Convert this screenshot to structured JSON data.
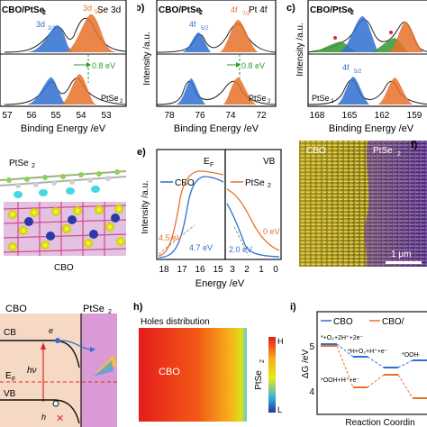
{
  "panels": {
    "a": {
      "label": "",
      "top_title": "CBO/PtSe",
      "top_title_sub": "2",
      "corner": "Se 3d",
      "peak1": "3d",
      "peak1_sub": "3/2",
      "peak2": "3d",
      "peak2_sub": "5/2",
      "shift": "0.8 eV",
      "bottom_label": "PtSe",
      "bottom_label_sub": "2",
      "xticks": [
        "57",
        "56",
        "55",
        "54",
        "53"
      ],
      "xlabel": "Binding Energy /eV"
    },
    "b": {
      "label": "b)",
      "top_title": "CBO/PtSe",
      "top_title_sub": "2",
      "corner": "Pt 4f",
      "peak1": "4f",
      "peak1_sub": "5/2",
      "peak2": "4f",
      "peak2_sub": "7/2",
      "shift": "0.8 eV",
      "bottom_label": "PtSe",
      "bottom_label_sub": "2",
      "ylabel": "Intensity /a.u.",
      "xticks": [
        "78",
        "76",
        "74",
        "72"
      ],
      "xlabel": "Binding Energy /eV"
    },
    "c": {
      "label": "c)",
      "top_title": "CBO/PtSe",
      "top_title_sub": "2",
      "peak1": "4f",
      "peak1_sub": "5/2",
      "bottom_label": "PtSe",
      "bottom_label_sub": "2",
      "ylabel": "Intensity /a.u.",
      "xticks": [
        "168",
        "165",
        "162",
        "159"
      ],
      "xlabel": "Binding Energy /eV"
    },
    "d": {
      "top_label": "PtSe",
      "top_label_sub": "2",
      "bottom_label": "CBO"
    },
    "e": {
      "label": "e)",
      "ef_label": "E",
      "ef_sub": "F",
      "vb_label": "VB",
      "legend_cbo": "CBO",
      "legend_ptse2": "PtSe",
      "legend_ptse2_sub": "2",
      "ylabel": "Intensity /a.u.",
      "val_orange_left": "4.5 eV",
      "val_blue_left": "4.7 eV",
      "val_orange_right": "0 eV",
      "val_blue_right": "2.0 eV",
      "xticks_left": [
        "18",
        "17",
        "16",
        "15"
      ],
      "xticks_right": [
        "3",
        "2",
        "1",
        "0"
      ],
      "xlabel": "Energy /eV"
    },
    "f": {
      "label": "f)",
      "left_label": "CBO",
      "right_label": "PtSe",
      "right_label_sub": "2",
      "scale": "1 μm"
    },
    "g": {
      "left_title": "CBO",
      "right_title": "PtSe",
      "right_title_sub": "2",
      "cb": "CB",
      "electron": "e",
      "hv": "hν",
      "ef": "E",
      "ef_sub": "F",
      "vb": "VB",
      "hole": "h",
      "cross": "✕"
    },
    "h": {
      "label": "h)",
      "title": "Holes distribution",
      "region_label": "CBO",
      "side_label": "PtSe",
      "side_label_sub": "2",
      "scale_high": "H",
      "scale_low": "L"
    },
    "i": {
      "label": "i)",
      "legend_cbo": "CBO",
      "legend_other": "CBO/",
      "ylabel": "ΔG /eV",
      "yticks": [
        "5",
        "4"
      ],
      "step1": "*+O₂+2H⁺+2e⁻",
      "step2": "*H+O₂+H⁺+e⁻",
      "step3": "*OOH+H⁺+e⁻",
      "step4": "*OOH·",
      "xlabel": "Reaction Coordin"
    }
  },
  "colors": {
    "blue": "#2f6fd0",
    "orange": "#e8712b",
    "green": "#3f9b3a",
    "dashed_green": "#2e9d2e",
    "red_dash": "#e0262b"
  }
}
